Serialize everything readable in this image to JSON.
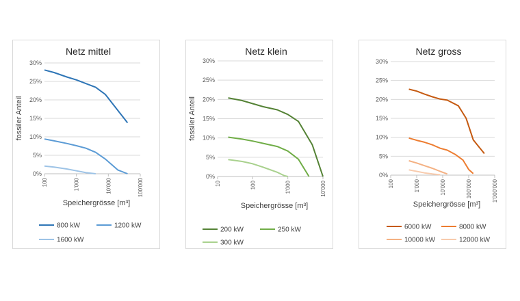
{
  "chart_data": [
    {
      "type": "line",
      "title": "Netz mittel",
      "xlabel": "Speichergrösse [m³]",
      "ylabel": "fossiler Anteil",
      "x_scale": "log",
      "xlim": [
        100,
        100000
      ],
      "x_ticks": [
        "100",
        "1'000",
        "10'000",
        "100'000"
      ],
      "ylim": [
        0,
        0.3
      ],
      "y_ticks": [
        "0%",
        "5%",
        "10%",
        "15%",
        "20%",
        "25%",
        "30%"
      ],
      "legend_position": "bottom",
      "series": [
        {
          "name": "800 kW",
          "color": "#2e75b6",
          "x": [
            100,
            200,
            500,
            1000,
            2000,
            4000,
            8000,
            40000
          ],
          "y": [
            0.281,
            0.274,
            0.262,
            0.254,
            0.244,
            0.234,
            0.215,
            0.138
          ]
        },
        {
          "name": "1200 kW",
          "color": "#5b9bd5",
          "x": [
            100,
            200,
            500,
            1000,
            2000,
            4000,
            8000,
            20000,
            40000
          ],
          "y": [
            0.094,
            0.089,
            0.082,
            0.076,
            0.069,
            0.058,
            0.04,
            0.01,
            0.0
          ]
        },
        {
          "name": "1600 kW",
          "color": "#9dc3e6",
          "x": [
            100,
            200,
            500,
            1000,
            2000,
            4000
          ],
          "y": [
            0.021,
            0.018,
            0.013,
            0.008,
            0.003,
            0.0
          ]
        }
      ]
    },
    {
      "type": "line",
      "title": "Netz klein",
      "xlabel": "Speichergrösse [m³]",
      "ylabel": "fossiler Anteil",
      "x_scale": "log",
      "xlim": [
        10,
        10000
      ],
      "x_ticks": [
        "10",
        "100",
        "1'000",
        "10'000"
      ],
      "ylim": [
        0,
        0.3
      ],
      "y_ticks": [
        "0%",
        "5%",
        "10%",
        "15%",
        "20%",
        "25%",
        "30%"
      ],
      "legend_position": "bottom",
      "series": [
        {
          "name": "200 kW",
          "color": "#548235",
          "x": [
            20,
            50,
            100,
            200,
            500,
            1000,
            2000,
            5000,
            10000
          ],
          "y": [
            0.204,
            0.197,
            0.189,
            0.181,
            0.173,
            0.161,
            0.143,
            0.082,
            0.0
          ]
        },
        {
          "name": "250 kW",
          "color": "#70ad47",
          "x": [
            20,
            50,
            100,
            200,
            500,
            1000,
            2000,
            4000
          ],
          "y": [
            0.102,
            0.097,
            0.092,
            0.086,
            0.078,
            0.066,
            0.045,
            0.0
          ]
        },
        {
          "name": "300 kW",
          "color": "#a9d18e",
          "x": [
            20,
            50,
            100,
            200,
            500,
            800,
            1000
          ],
          "y": [
            0.044,
            0.039,
            0.033,
            0.024,
            0.011,
            0.002,
            0.0
          ]
        }
      ]
    },
    {
      "type": "line",
      "title": "Netz gross",
      "xlabel": "Speichergrösse [m³]",
      "ylabel": "",
      "x_scale": "log",
      "xlim": [
        100,
        1000000
      ],
      "x_ticks": [
        "100",
        "1'000",
        "10'000",
        "100'000",
        "1'000'000"
      ],
      "ylim": [
        0,
        0.3
      ],
      "y_ticks": [
        "0%",
        "5%",
        "10%",
        "15%",
        "20%",
        "25%",
        "30%"
      ],
      "legend_position": "bottom",
      "series": [
        {
          "name": "6000 kW",
          "color": "#c55a11",
          "x": [
            500,
            1000,
            2000,
            4000,
            8000,
            15000,
            40000,
            80000,
            150000,
            400000
          ],
          "y": [
            0.227,
            0.222,
            0.214,
            0.207,
            0.201,
            0.198,
            0.183,
            0.15,
            0.093,
            0.057
          ]
        },
        {
          "name": "8000 kW",
          "color": "#ed7d31",
          "x": [
            500,
            1000,
            2000,
            4000,
            8000,
            15000,
            30000,
            60000,
            100000,
            150000
          ],
          "y": [
            0.098,
            0.092,
            0.087,
            0.08,
            0.071,
            0.066,
            0.055,
            0.04,
            0.015,
            0.004
          ]
        },
        {
          "name": "10000 kW",
          "color": "#f4b183",
          "x": [
            500,
            1000,
            2000,
            4000,
            8000,
            15000
          ],
          "y": [
            0.038,
            0.032,
            0.025,
            0.018,
            0.01,
            0.003
          ]
        },
        {
          "name": "12000 kW",
          "color": "#f8cbad",
          "x": [
            500,
            1000,
            2000,
            4000,
            8000
          ],
          "y": [
            0.014,
            0.01,
            0.006,
            0.003,
            0.001
          ]
        }
      ]
    }
  ]
}
